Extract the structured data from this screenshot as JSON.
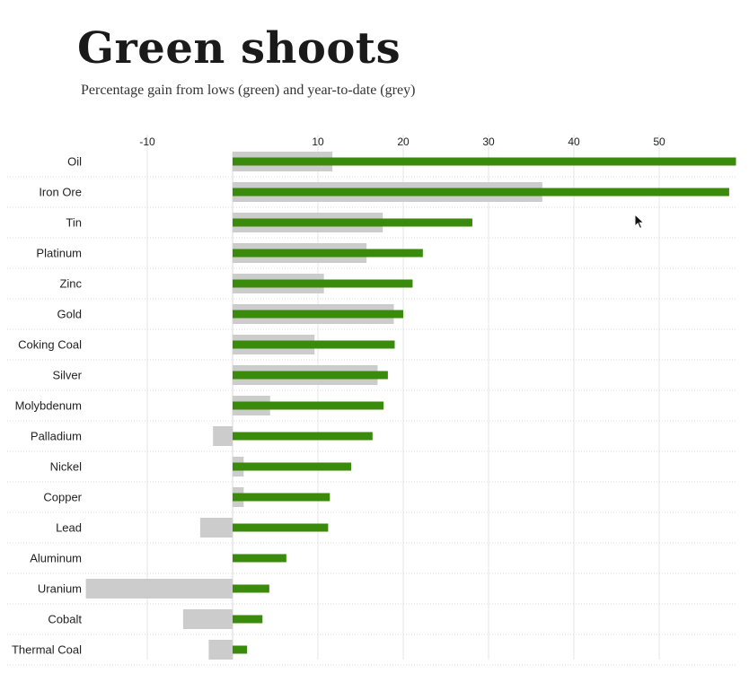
{
  "chart_data": {
    "type": "bar",
    "orientation": "horizontal",
    "title": "Green shoots",
    "subtitle": "Percentage gain from lows (green) and year-to-date (grey)",
    "xlabel": "",
    "ylabel": "",
    "xlim": [
      -17,
      59
    ],
    "xticks": [
      -10,
      10,
      20,
      30,
      40,
      50
    ],
    "xtick_labels": [
      "-10",
      "10",
      "20",
      "30",
      "40",
      "50"
    ],
    "grid": true,
    "categories": [
      "Oil",
      "Iron Ore",
      "Tin",
      "Platinum",
      "Zinc",
      "Gold",
      "Coking Coal",
      "Silver",
      "Molybdenum",
      "Palladium",
      "Nickel",
      "Copper",
      "Lead",
      "Aluminum",
      "Uranium",
      "Cobalt",
      "Thermal Coal"
    ],
    "series": [
      {
        "color": "#cccccc",
        "values": [
          11.7,
          36.3,
          17.6,
          15.7,
          10.7,
          18.9,
          9.6,
          17.0,
          4.4,
          -2.3,
          1.3,
          1.3,
          -3.8,
          0.0,
          -17.2,
          -5.8,
          -2.8
        ]
      },
      {
        "color": "#3a8a0b",
        "values": [
          59,
          58.2,
          28.1,
          22.3,
          21.1,
          20.0,
          19.0,
          18.2,
          17.7,
          16.4,
          13.9,
          11.4,
          11.2,
          6.3,
          4.3,
          3.5,
          1.7
        ]
      }
    ]
  },
  "colors": {
    "green": "#3a8a0b",
    "grey": "#cccccc",
    "grid": "#e6e6e6"
  },
  "icons": {
    "cursor": "mouse-pointer-icon"
  }
}
